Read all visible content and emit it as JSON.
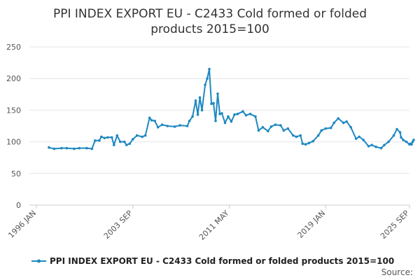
{
  "chart_data": {
    "type": "line",
    "title_line1": "PPI INDEX EXPORT EU - C2433 Cold formed or folded",
    "title_line2": "products 2015=100",
    "ylim": [
      0,
      250
    ],
    "y_ticks": [
      0,
      50,
      100,
      150,
      200,
      250
    ],
    "x_range": [
      "1996-01",
      "2025-09"
    ],
    "x_ticks": [
      "1996 JAN",
      "2003 SEP",
      "2011 MAY",
      "2019 JAN",
      "2025 SEP"
    ],
    "grid": true,
    "legend_position": "bottom",
    "source_label": "Source:",
    "series": [
      {
        "name": "PPI INDEX EXPORT EU - C2433 Cold formed or folded products 2015=100",
        "color": "#1f88c1",
        "points": [
          [
            "1997-01",
            91
          ],
          [
            "1997-06",
            89
          ],
          [
            "1998-01",
            90
          ],
          [
            "1998-06",
            90
          ],
          [
            "1999-01",
            89
          ],
          [
            "1999-06",
            90
          ],
          [
            "2000-01",
            90
          ],
          [
            "2000-06",
            89
          ],
          [
            "2000-09",
            102
          ],
          [
            "2001-01",
            102
          ],
          [
            "2001-03",
            108
          ],
          [
            "2001-06",
            106
          ],
          [
            "2001-09",
            107
          ],
          [
            "2002-01",
            107
          ],
          [
            "2002-03",
            95
          ],
          [
            "2002-06",
            110
          ],
          [
            "2002-09",
            100
          ],
          [
            "2003-01",
            100
          ],
          [
            "2003-03",
            95
          ],
          [
            "2003-06",
            97
          ],
          [
            "2003-09",
            104
          ],
          [
            "2004-01",
            110
          ],
          [
            "2004-06",
            108
          ],
          [
            "2004-09",
            110
          ],
          [
            "2005-01",
            138
          ],
          [
            "2005-03",
            134
          ],
          [
            "2005-06",
            133
          ],
          [
            "2005-09",
            123
          ],
          [
            "2006-01",
            127
          ],
          [
            "2006-06",
            125
          ],
          [
            "2007-01",
            124
          ],
          [
            "2007-06",
            126
          ],
          [
            "2008-01",
            125
          ],
          [
            "2008-03",
            133
          ],
          [
            "2008-06",
            140
          ],
          [
            "2008-09",
            165
          ],
          [
            "2008-11",
            143
          ],
          [
            "2009-01",
            170
          ],
          [
            "2009-03",
            150
          ],
          [
            "2009-06",
            190
          ],
          [
            "2009-08",
            200
          ],
          [
            "2009-10",
            215
          ],
          [
            "2009-12",
            160
          ],
          [
            "2010-02",
            161
          ],
          [
            "2010-04",
            133
          ],
          [
            "2010-06",
            176
          ],
          [
            "2010-08",
            144
          ],
          [
            "2010-10",
            145
          ],
          [
            "2011-01",
            130
          ],
          [
            "2011-04",
            140
          ],
          [
            "2011-07",
            132
          ],
          [
            "2011-10",
            143
          ],
          [
            "2012-01",
            144
          ],
          [
            "2012-06",
            148
          ],
          [
            "2012-09",
            142
          ],
          [
            "2013-01",
            144
          ],
          [
            "2013-06",
            140
          ],
          [
            "2013-09",
            118
          ],
          [
            "2014-01",
            123
          ],
          [
            "2014-06",
            117
          ],
          [
            "2014-09",
            124
          ],
          [
            "2015-01",
            127
          ],
          [
            "2015-06",
            126
          ],
          [
            "2015-09",
            118
          ],
          [
            "2016-01",
            121
          ],
          [
            "2016-06",
            110
          ],
          [
            "2016-09",
            108
          ],
          [
            "2017-01",
            110
          ],
          [
            "2017-03",
            97
          ],
          [
            "2017-06",
            96
          ],
          [
            "2017-09",
            98
          ],
          [
            "2018-01",
            101
          ],
          [
            "2018-06",
            110
          ],
          [
            "2018-09",
            118
          ],
          [
            "2019-01",
            121
          ],
          [
            "2019-06",
            122
          ],
          [
            "2019-09",
            130
          ],
          [
            "2020-01",
            137
          ],
          [
            "2020-06",
            130
          ],
          [
            "2020-09",
            132
          ],
          [
            "2021-01",
            123
          ],
          [
            "2021-06",
            105
          ],
          [
            "2021-09",
            108
          ],
          [
            "2022-01",
            103
          ],
          [
            "2022-06",
            93
          ],
          [
            "2022-09",
            95
          ],
          [
            "2023-01",
            92
          ],
          [
            "2023-06",
            90
          ],
          [
            "2023-09",
            95
          ],
          [
            "2024-01",
            100
          ],
          [
            "2024-06",
            110
          ],
          [
            "2024-09",
            120
          ],
          [
            "2024-12",
            115
          ],
          [
            "2025-01",
            107
          ],
          [
            "2025-03",
            103
          ],
          [
            "2025-06",
            100
          ],
          [
            "2025-09",
            96
          ],
          [
            "2025-10",
            97
          ],
          [
            "2025-11",
            96
          ],
          [
            "2025-12",
            100
          ],
          [
            "2026-01",
            103
          ]
        ]
      }
    ]
  }
}
